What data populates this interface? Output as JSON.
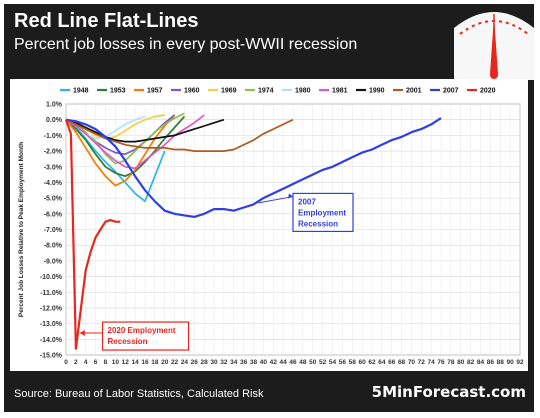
{
  "header": {
    "title": "Red Line Flat-Lines",
    "subtitle": "Percent job losses in every post-WWII recession"
  },
  "footer": {
    "source": "Source: Bureau of Labor Statistics, Calculated Risk",
    "brand": "5MinForecast.com"
  },
  "colors": {
    "background": "#1c1c1c",
    "accent": "#e8261e"
  },
  "chart_data": {
    "type": "line",
    "title": "",
    "xlabel": "",
    "ylabel": "Percent Job Losses Relative to Peak Employment Month",
    "xlim": [
      0,
      92
    ],
    "ylim": [
      -15,
      1
    ],
    "xticks": [
      0,
      2,
      4,
      6,
      8,
      10,
      12,
      14,
      16,
      18,
      20,
      22,
      24,
      26,
      28,
      30,
      32,
      34,
      36,
      38,
      40,
      42,
      44,
      46,
      48,
      50,
      52,
      54,
      56,
      58,
      60,
      62,
      64,
      66,
      68,
      70,
      72,
      74,
      76,
      78,
      80,
      82,
      84,
      86,
      88,
      90,
      92
    ],
    "yticks": [
      1,
      0,
      -1,
      -2,
      -3,
      -4,
      -5,
      -6,
      -7,
      -8,
      -9,
      -10,
      -11,
      -12,
      -13,
      -14,
      -15
    ],
    "grid": true,
    "legend_position": "top",
    "series": [
      {
        "name": "1948",
        "color": "#29b6e8",
        "x": [
          0,
          2,
          4,
          6,
          8,
          10,
          12,
          14,
          16,
          18,
          20
        ],
        "y": [
          0,
          -0.5,
          -1.2,
          -2.0,
          -2.7,
          -3.3,
          -4.0,
          -4.7,
          -5.2,
          -3.6,
          -2.0
        ]
      },
      {
        "name": "1953",
        "color": "#2e7d32",
        "x": [
          0,
          2,
          4,
          6,
          8,
          10,
          12,
          14,
          16,
          18,
          20,
          22,
          24
        ],
        "y": [
          0,
          -0.6,
          -1.3,
          -2.2,
          -3.0,
          -3.4,
          -3.6,
          -3.3,
          -2.7,
          -2.0,
          -1.2,
          -0.5,
          0.2
        ]
      },
      {
        "name": "1957",
        "color": "#f57c00",
        "x": [
          0,
          2,
          4,
          6,
          8,
          10,
          12,
          14,
          16,
          18,
          20,
          22
        ],
        "y": [
          0,
          -0.8,
          -1.8,
          -2.8,
          -3.6,
          -4.2,
          -3.9,
          -3.2,
          -2.2,
          -1.2,
          -0.4,
          0.3
        ]
      },
      {
        "name": "1960",
        "color": "#7e57c2",
        "x": [
          0,
          2,
          4,
          6,
          8,
          10,
          12,
          14,
          16,
          18,
          20,
          22
        ],
        "y": [
          0,
          -0.4,
          -0.9,
          -1.4,
          -1.8,
          -2.1,
          -2.2,
          -1.9,
          -1.4,
          -0.8,
          -0.2,
          0.3
        ]
      },
      {
        "name": "1969",
        "color": "#f4d03f",
        "x": [
          0,
          2,
          4,
          6,
          8,
          10,
          12,
          14,
          16,
          18,
          20
        ],
        "y": [
          0,
          -0.2,
          -0.6,
          -1.0,
          -1.2,
          -1.1,
          -0.7,
          -0.3,
          0,
          0.2,
          0.3
        ]
      },
      {
        "name": "1974",
        "color": "#8bc34a",
        "x": [
          0,
          2,
          4,
          6,
          8,
          10,
          12,
          14,
          16,
          18,
          20,
          22,
          24
        ],
        "y": [
          0,
          -0.3,
          -0.8,
          -1.4,
          -2.2,
          -2.8,
          -2.6,
          -2.0,
          -1.4,
          -0.8,
          -0.3,
          0.1,
          0.4
        ]
      },
      {
        "name": "1980",
        "color": "#b3e0ff",
        "x": [
          0,
          2,
          4,
          6,
          8,
          10,
          12,
          14,
          16
        ],
        "y": [
          0,
          -0.4,
          -0.9,
          -1.2,
          -1.1,
          -0.7,
          -0.3,
          0.0,
          0.2
        ]
      },
      {
        "name": "1981",
        "color": "#e056c7",
        "x": [
          0,
          2,
          4,
          6,
          8,
          10,
          12,
          14,
          16,
          18,
          20,
          22,
          24,
          26,
          28
        ],
        "y": [
          0,
          -0.4,
          -0.9,
          -1.5,
          -2.1,
          -2.6,
          -3.0,
          -3.1,
          -2.6,
          -2.1,
          -1.6,
          -1.0,
          -0.6,
          -0.2,
          0.3
        ]
      },
      {
        "name": "1990",
        "color": "#111111",
        "x": [
          0,
          2,
          4,
          6,
          8,
          10,
          12,
          14,
          16,
          18,
          20,
          22,
          24,
          26,
          28,
          30,
          32
        ],
        "y": [
          0,
          -0.2,
          -0.5,
          -0.8,
          -1.1,
          -1.3,
          -1.4,
          -1.4,
          -1.3,
          -1.2,
          -1.1,
          -1.0,
          -0.8,
          -0.6,
          -0.4,
          -0.2,
          0
        ]
      },
      {
        "name": "2001",
        "color": "#b25a1e",
        "x": [
          0,
          2,
          4,
          6,
          8,
          10,
          12,
          14,
          16,
          18,
          20,
          22,
          24,
          26,
          28,
          30,
          32,
          34,
          36,
          38,
          40,
          42,
          44,
          46
        ],
        "y": [
          0,
          -0.3,
          -0.6,
          -0.9,
          -1.2,
          -1.4,
          -1.6,
          -1.7,
          -1.8,
          -1.8,
          -1.8,
          -1.9,
          -1.9,
          -2.0,
          -2.0,
          -2.0,
          -2.0,
          -1.9,
          -1.6,
          -1.3,
          -0.9,
          -0.6,
          -0.3,
          0
        ]
      },
      {
        "name": "2007",
        "color": "#2f3fe6",
        "x": [
          0,
          2,
          4,
          6,
          8,
          10,
          12,
          14,
          16,
          18,
          20,
          22,
          24,
          26,
          28,
          30,
          32,
          34,
          36,
          38,
          40,
          42,
          44,
          46,
          48,
          50,
          52,
          54,
          56,
          58,
          60,
          62,
          64,
          66,
          68,
          70,
          72,
          74,
          76
        ],
        "y": [
          0,
          -0.1,
          -0.3,
          -0.6,
          -1.1,
          -1.7,
          -2.6,
          -3.6,
          -4.5,
          -5.2,
          -5.8,
          -6.0,
          -6.1,
          -6.2,
          -6.0,
          -5.7,
          -5.7,
          -5.8,
          -5.6,
          -5.4,
          -5.0,
          -4.7,
          -4.4,
          -4.1,
          -3.8,
          -3.5,
          -3.2,
          -3.0,
          -2.7,
          -2.4,
          -2.1,
          -1.9,
          -1.6,
          -1.3,
          -1.1,
          -0.8,
          -0.6,
          -0.3,
          0.1
        ]
      },
      {
        "name": "2020",
        "color": "#e8261e",
        "x": [
          0,
          1,
          2,
          3,
          4,
          5,
          6,
          7,
          8,
          9,
          10,
          11
        ],
        "y": [
          0,
          -0.9,
          -14.6,
          -12.1,
          -9.6,
          -8.4,
          -7.5,
          -7.0,
          -6.5,
          -6.4,
          -6.5,
          -6.5
        ]
      }
    ],
    "annotations": [
      {
        "text": [
          "2007",
          "Employment",
          "Recession"
        ],
        "color": "#2f3fe6"
      },
      {
        "text": [
          "2020 Employment",
          "Recession"
        ],
        "color": "#e8261e"
      }
    ]
  }
}
